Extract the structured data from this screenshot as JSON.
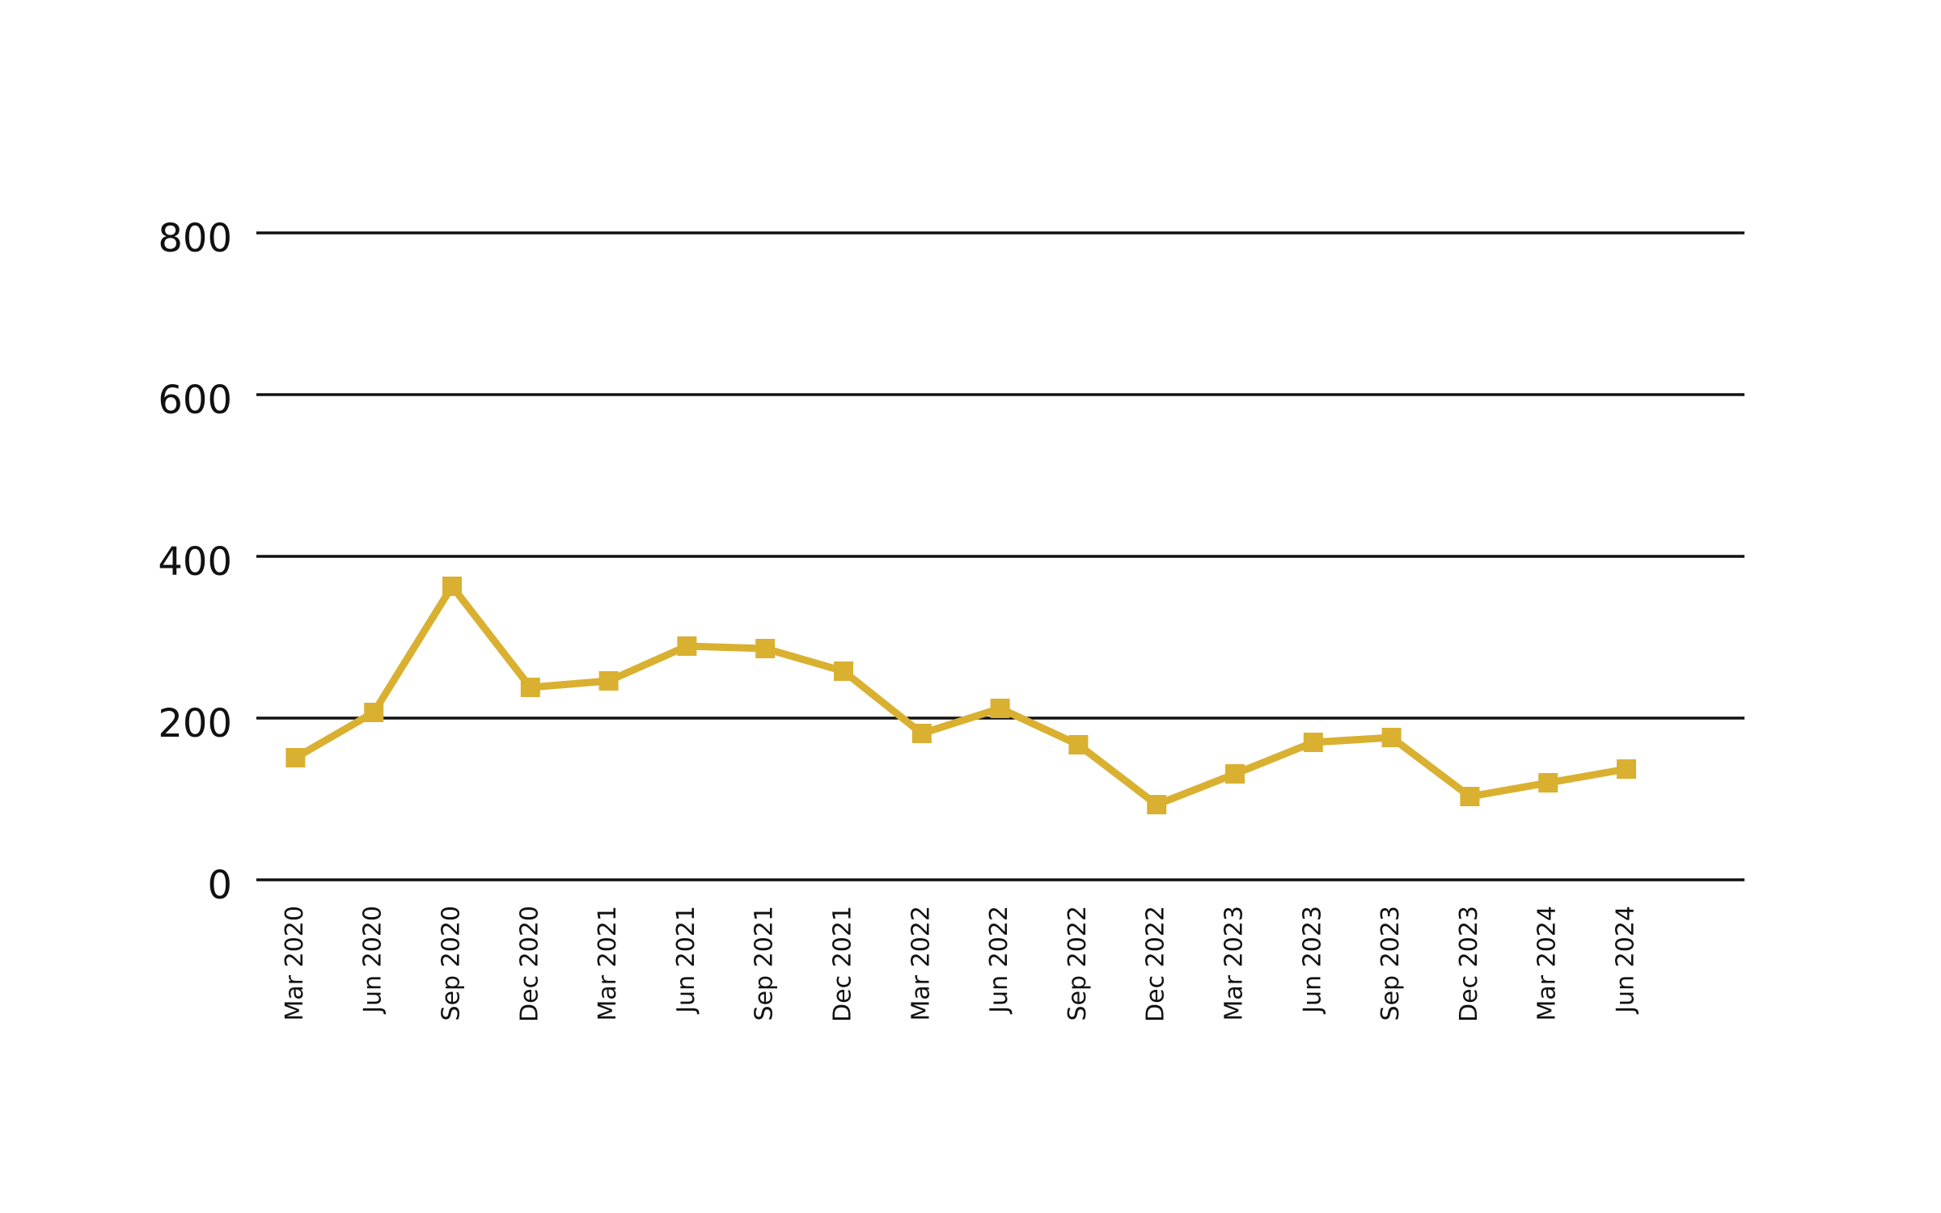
{
  "chart_data": {
    "type": "line",
    "categories": [
      "Mar 2020",
      "Jun 2020",
      "Sep 2020",
      "Dec 2020",
      "Mar 2021",
      "Jun 2021",
      "Sep 2021",
      "Dec 2021",
      "Mar 2022",
      "Jun 2022",
      "Sep 2022",
      "Dec 2022",
      "Mar 2023",
      "Jun 2023",
      "Sep 2023",
      "Dec 2023",
      "Mar 2024",
      "Jun 2024"
    ],
    "values": [
      151,
      207,
      363,
      238,
      246,
      289,
      286,
      258,
      181,
      212,
      167,
      93,
      131,
      170,
      176,
      103,
      120,
      137
    ],
    "color": "#d9b030",
    "ylim": [
      0,
      800
    ],
    "yticks": [
      0,
      200,
      400,
      600,
      800
    ],
    "grid": true
  }
}
